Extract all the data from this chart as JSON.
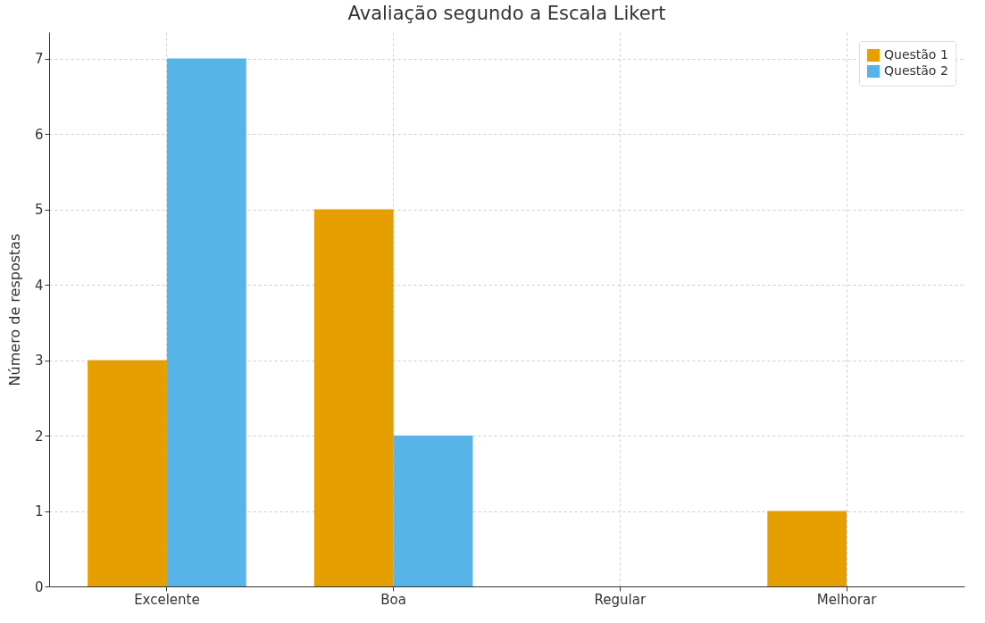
{
  "chart_data": {
    "type": "bar",
    "title": "Avaliação segundo a Escala Likert",
    "ylabel": "Número de respostas",
    "categories": [
      "Excelente",
      "Boa",
      "Regular",
      "Melhorar"
    ],
    "series": [
      {
        "name": "Questão 1",
        "color": "#e69f00",
        "values": [
          3,
          5,
          0,
          1
        ]
      },
      {
        "name": "Questão 2",
        "color": "#56b4e9",
        "values": [
          7,
          2,
          0,
          0
        ]
      }
    ],
    "ylim": [
      0,
      7.35
    ],
    "yticks": [
      0,
      1,
      2,
      3,
      4,
      5,
      6,
      7
    ],
    "grid": true,
    "legend": "top right"
  }
}
